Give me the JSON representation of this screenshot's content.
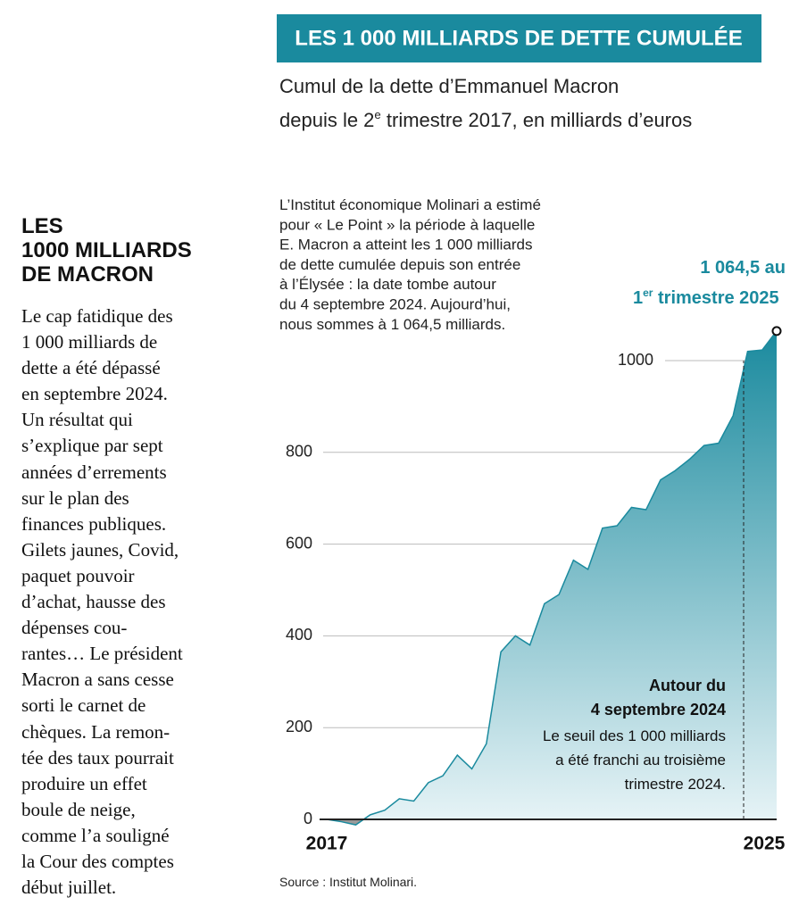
{
  "sidebar": {
    "title_lines": [
      "LES",
      "1000 MILLIARDS",
      "DE MACRON"
    ],
    "body_lines": [
      "Le cap fatidique des",
      "1 000 milliards de",
      "dette a été dépassé",
      "en septembre 2024.",
      "Un résultat qui",
      "s’explique par sept",
      "années d’errements",
      "sur le plan des",
      "finances publiques.",
      "Gilets jaunes, Covid,",
      "paquet pouvoir",
      "d’achat, hausse des",
      "dépenses cou-",
      "rantes… Le président",
      "Macron a sans cesse",
      "sorti le carnet de",
      "chèques. La remon-",
      "tée des taux pourrait",
      "produire un effet",
      "boule de neige,",
      "comme l’a souligné",
      "la Cour des comptes",
      "début juillet."
    ]
  },
  "chart_data": {
    "type": "area",
    "title": "LES 1 000 MILLIARDS DE DETTE CUMULÉE",
    "subtitle_line1": "Cumul de la dette d’Emmanuel Macron",
    "subtitle_line2": [
      "depuis le 2",
      "e",
      " trimestre 2017, en milliards d’euros"
    ],
    "note_lines": [
      "L’Institut économique Molinari a estimé",
      "pour « Le Point » la période à laquelle",
      "E. Macron a atteint les 1 000 milliards",
      "de dette cumulée depuis son entrée",
      "à l’Élysée : la date tombe autour",
      "du 4 septembre 2024. Aujourd’hui,",
      "nous sommes à 1 064,5 milliards."
    ],
    "categories": [
      "2017",
      null,
      null,
      null,
      null,
      null,
      null,
      null,
      null,
      null,
      null,
      null,
      null,
      null,
      null,
      null,
      null,
      null,
      null,
      null,
      null,
      null,
      null,
      null,
      null,
      null,
      null,
      null,
      null,
      null,
      null,
      "2025"
    ],
    "values": [
      0,
      -5,
      -12,
      10,
      20,
      45,
      40,
      80,
      95,
      140,
      110,
      165,
      365,
      400,
      380,
      470,
      490,
      565,
      545,
      635,
      640,
      680,
      675,
      740,
      760,
      785,
      815,
      820,
      880,
      1020,
      1023,
      1064.5
    ],
    "color": "#1a8a9e",
    "negative_color": "#9a9a9a",
    "ylim": [
      -20,
      1100
    ],
    "yticks": [
      0,
      200,
      400,
      600,
      800,
      1000
    ],
    "grid": true,
    "last_label_line1": "1 064,5 au",
    "last_label_line2": [
      "1",
      "er",
      " trimestre 2025"
    ],
    "event_title_lines": [
      "Autour du",
      "4 septembre 2024"
    ],
    "event_text_lines": [
      "Le seuil des 1 000 milliards",
      "a été franchi au troisième",
      "trimestre 2024."
    ],
    "source": "Source : Institut Molinari."
  }
}
